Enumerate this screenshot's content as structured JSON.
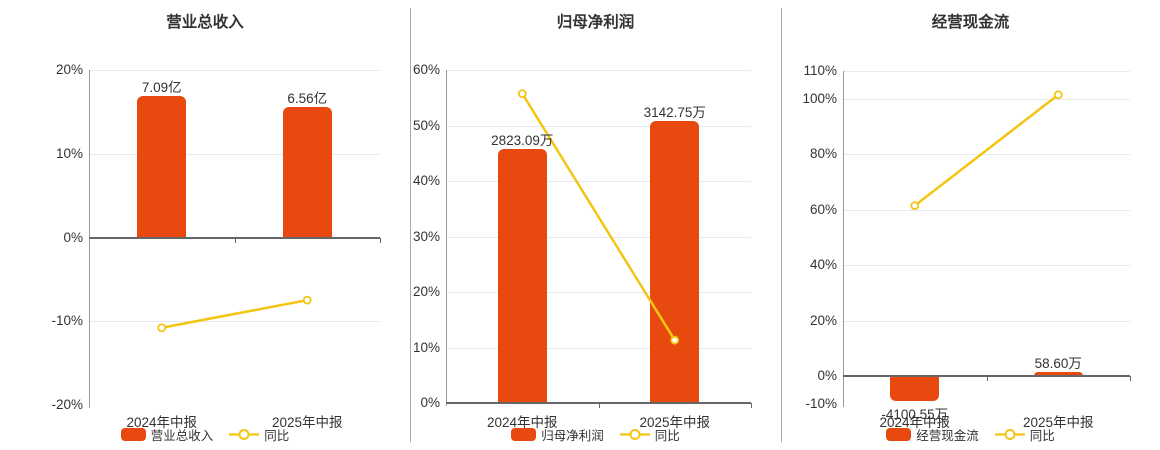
{
  "colors": {
    "bar": "#e8490f",
    "line": "#f3c513",
    "grid": "#e6ebf3",
    "zero_axis": "#666666",
    "y_axis": "#999999",
    "separator": "#ababab",
    "text": "#333333"
  },
  "chart_data": [
    {
      "type": "bar+line",
      "title": "营业总收入",
      "categories": [
        "2024年中报",
        "2025年中报"
      ],
      "bar_series": {
        "name": "营业总收入",
        "color": "#e8490f",
        "value_labels": [
          "7.09亿",
          "6.56亿"
        ],
        "display_axis_values": [
          16.9,
          15.6
        ],
        "label_side": [
          "above",
          "above"
        ]
      },
      "line_series": {
        "name": "同比",
        "color": "#f3c513",
        "marker": "circle",
        "values": [
          -10.78,
          -7.48
        ]
      },
      "y_axis": {
        "min": -20,
        "max": 20,
        "ticks": [
          -20,
          -10,
          0,
          10,
          20
        ],
        "suffix": "%"
      },
      "legend": [
        "营业总收入",
        "同比"
      ],
      "legend_position": "bottom"
    },
    {
      "type": "bar+line",
      "title": "归母净利润",
      "categories": [
        "2024年中报",
        "2025年中报"
      ],
      "bar_series": {
        "name": "归母净利润",
        "color": "#e8490f",
        "value_labels": [
          "2823.09万",
          "3142.75万"
        ],
        "display_axis_values": [
          45.8,
          50.8
        ],
        "label_side": [
          "above",
          "above"
        ]
      },
      "line_series": {
        "name": "同比",
        "color": "#f3c513",
        "marker": "circle",
        "values": [
          55.75,
          11.32
        ]
      },
      "y_axis": {
        "min": 0,
        "max": 60,
        "ticks": [
          0,
          10,
          20,
          30,
          40,
          50,
          60
        ],
        "suffix": "%"
      },
      "legend": [
        "归母净利润",
        "同比"
      ],
      "legend_position": "bottom"
    },
    {
      "type": "bar+line",
      "title": "经营现金流",
      "categories": [
        "2024年中报",
        "2025年中报"
      ],
      "bar_series": {
        "name": "经营现金流",
        "color": "#e8490f",
        "value_labels": [
          "-4100.55万",
          "58.60万"
        ],
        "display_axis_values": [
          -9,
          1.5
        ],
        "label_side": [
          "below",
          "above"
        ]
      },
      "line_series": {
        "name": "同比",
        "color": "#f3c513",
        "marker": "circle",
        "values": [
          61.5,
          101.43
        ]
      },
      "y_axis": {
        "min": -10,
        "max": 110,
        "ticks": [
          -10,
          0,
          20,
          40,
          60,
          80,
          100,
          110
        ],
        "suffix": "%"
      },
      "legend": [
        "经营现金流",
        "同比"
      ],
      "legend_position": "bottom"
    }
  ]
}
